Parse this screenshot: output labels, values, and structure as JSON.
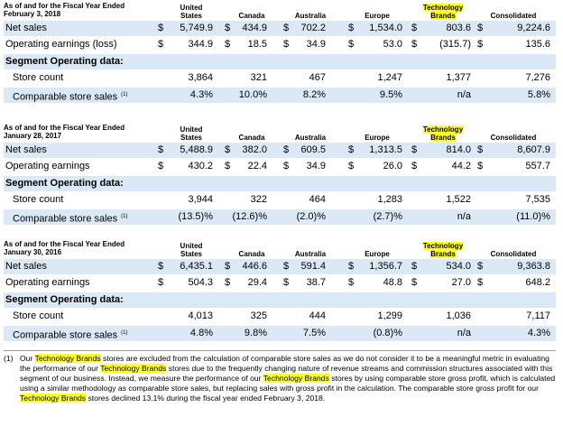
{
  "columns": [
    "United States",
    "Canada",
    "Australia",
    "Europe",
    "Technology Brands",
    "Consolidated"
  ],
  "columns_lines": [
    [
      "United",
      "States"
    ],
    [
      "Canada"
    ],
    [
      "Australia"
    ],
    [
      "Europe"
    ],
    [
      "Technology",
      "Brands"
    ],
    [
      "Consolidated"
    ]
  ],
  "row_labels": {
    "net_sales": "Net sales",
    "segment_header": "Segment Operating data:",
    "store_count": "Store count",
    "comparable": "Comparable store sales",
    "comparable_sup": "(1)"
  },
  "sections": [
    {
      "title_line1": "As of and for the Fiscal Year Ended",
      "title_line2": "February 3, 2018",
      "earnings_label": "Operating earnings (loss)",
      "net_sales": [
        [
          "$",
          "5,749.9"
        ],
        [
          "$",
          "434.9"
        ],
        [
          "$",
          "702.2"
        ],
        [
          "$",
          "1,534.0"
        ],
        [
          "$",
          "803.6"
        ],
        [
          "$",
          "9,224.6"
        ]
      ],
      "earnings": [
        [
          "$",
          "344.9"
        ],
        [
          "$",
          "18.5"
        ],
        [
          "$",
          "34.9"
        ],
        [
          "$",
          "53.0"
        ],
        [
          "$",
          "(315.7)"
        ],
        [
          "$",
          "135.6"
        ]
      ],
      "store_count": [
        "3,864",
        "321",
        "467",
        "1,247",
        "1,377",
        "7,276"
      ],
      "comparable": [
        "4.3%",
        "10.0%",
        "8.2%",
        "9.5%",
        "n/a",
        "5.8%"
      ]
    },
    {
      "title_line1": "As of and for the Fiscal Year Ended",
      "title_line2": "January 28, 2017",
      "earnings_label": "Operating earnings",
      "net_sales": [
        [
          "$",
          "5,488.9"
        ],
        [
          "$",
          "382.0"
        ],
        [
          "$",
          "609.5"
        ],
        [
          "$",
          "1,313.5"
        ],
        [
          "$",
          "814.0"
        ],
        [
          "$",
          "8,607.9"
        ]
      ],
      "earnings": [
        [
          "$",
          "430.2"
        ],
        [
          "$",
          "22.4"
        ],
        [
          "$",
          "34.9"
        ],
        [
          "$",
          "26.0"
        ],
        [
          "$",
          "44.2"
        ],
        [
          "$",
          "557.7"
        ]
      ],
      "store_count": [
        "3,944",
        "322",
        "464",
        "1,283",
        "1,522",
        "7,535"
      ],
      "comparable": [
        "(13.5)%",
        "(12.6)%",
        "(2.0)%",
        "(2.7)%",
        "n/a",
        "(11.0)%"
      ]
    },
    {
      "title_line1": "As of and for the Fiscal Year Ended",
      "title_line2": "January 30, 2016",
      "earnings_label": "Operating earnings",
      "net_sales": [
        [
          "$",
          "6,435.1"
        ],
        [
          "$",
          "446.6"
        ],
        [
          "$",
          "591.4"
        ],
        [
          "$",
          "1,356.7"
        ],
        [
          "$",
          "534.0"
        ],
        [
          "$",
          "9,363.8"
        ]
      ],
      "earnings": [
        [
          "$",
          "504.3"
        ],
        [
          "$",
          "29.4"
        ],
        [
          "$",
          "38.7"
        ],
        [
          "$",
          "48.8"
        ],
        [
          "$",
          "27.0"
        ],
        [
          "$",
          "648.2"
        ]
      ],
      "store_count": [
        "4,013",
        "325",
        "444",
        "1,299",
        "1,036",
        "7,117"
      ],
      "comparable": [
        "4.8%",
        "9.8%",
        "7.5%",
        "(0.8)%",
        "n/a",
        "4.3%"
      ]
    }
  ],
  "footnote": {
    "marker": "(1)",
    "segments": [
      {
        "t": "Our ",
        "hl": false
      },
      {
        "t": "Technology Brands",
        "hl": true
      },
      {
        "t": " stores are excluded from the calculation of comparable store sales as we do not consider it to be a meaningful metric in evaluating the performance of our ",
        "hl": false
      },
      {
        "t": "Technology Brands",
        "hl": true
      },
      {
        "t": " stores due to the frequently changing nature of revenue streams and commission structures associated with this segment of our business. Instead, we measure the performance of our ",
        "hl": false
      },
      {
        "t": "Technology Brands",
        "hl": true
      },
      {
        "t": " stores by using comparable store gross profit, which is calculated using a similar methodology as comparable store sales, but replacing sales with gross profit in the calculation. The comparable store gross profit for our ",
        "hl": false
      },
      {
        "t": "Technology Brands",
        "hl": true
      },
      {
        "t": " stores declined 13.1% during the fiscal year ended February 3, 2018.",
        "hl": false
      }
    ]
  },
  "colors": {
    "row_highlight": "#dbe9f6",
    "text_highlight": "#ffff33"
  }
}
